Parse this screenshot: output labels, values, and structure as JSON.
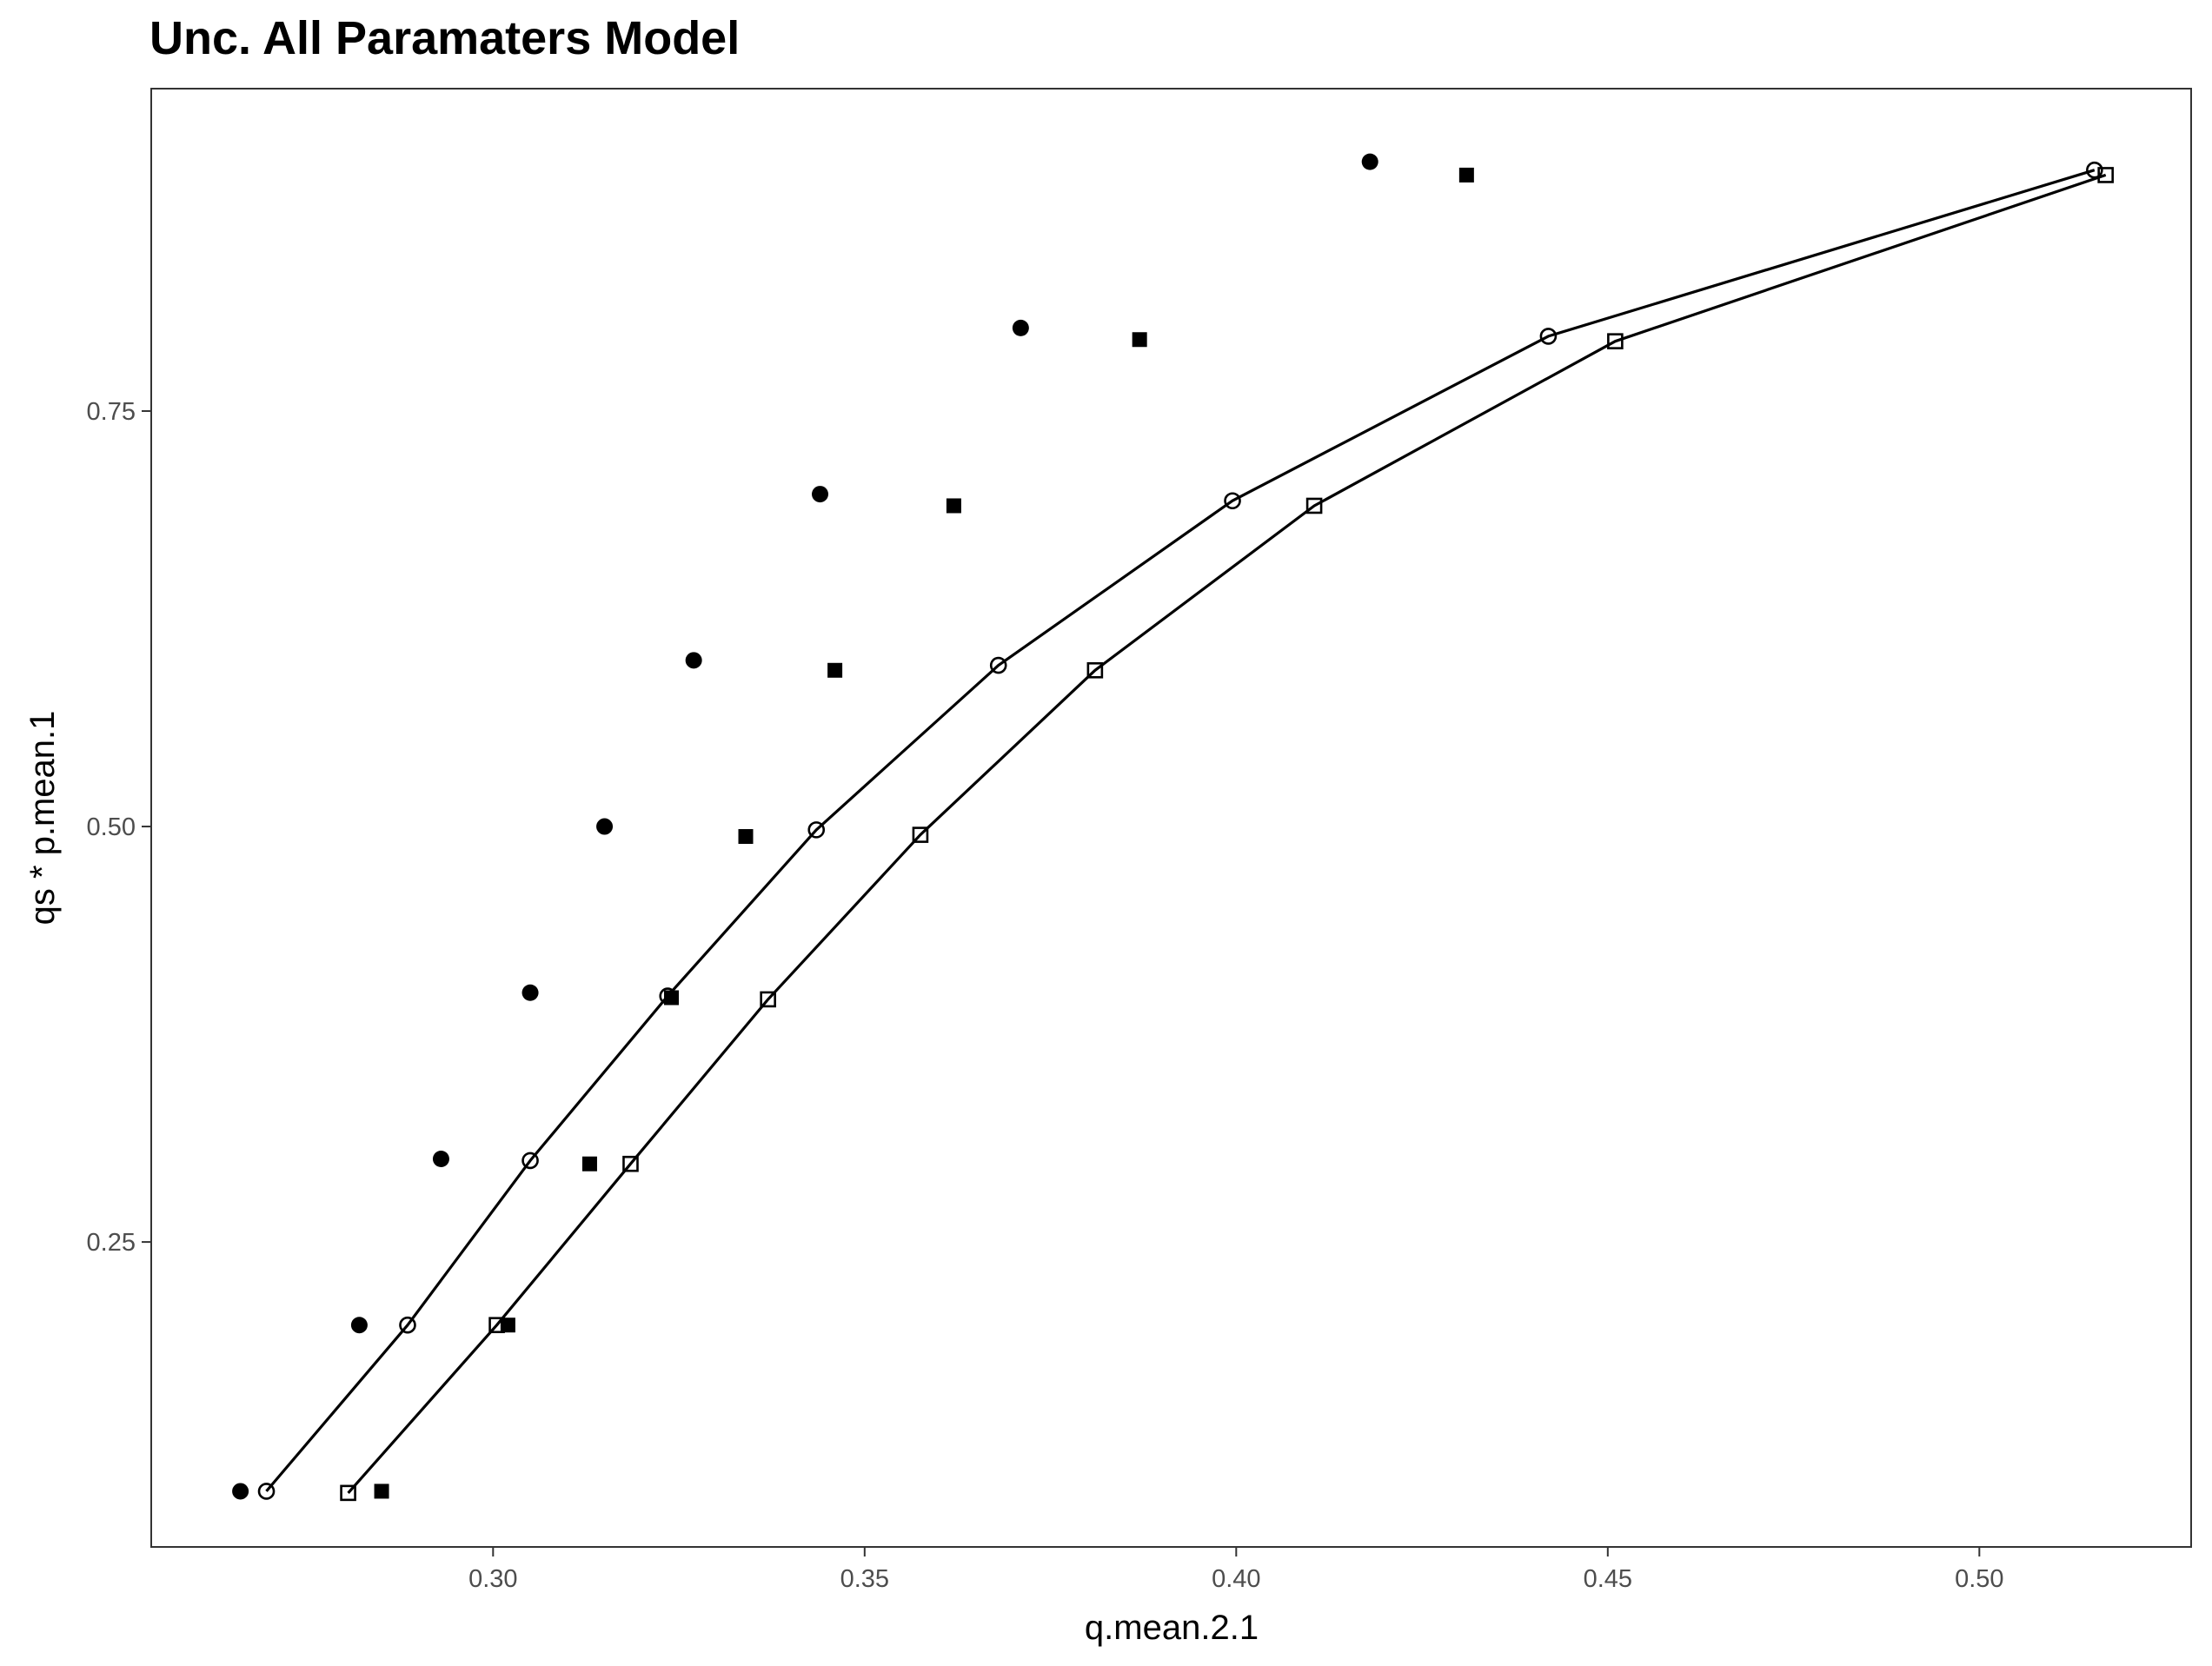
{
  "chart_data": {
    "type": "scatter",
    "title": "Unc. All Paramaters Model",
    "xlabel": "q.mean.2.1",
    "ylabel": "qs * p.mean.1",
    "xlim": [
      0.254,
      0.5285
    ],
    "ylim": [
      0.0665,
      0.944
    ],
    "x_ticks": [
      0.3,
      0.35,
      0.4,
      0.45,
      0.5
    ],
    "x_tick_labels": [
      "0.30",
      "0.35",
      "0.40",
      "0.45",
      "0.50"
    ],
    "y_ticks": [
      0.25,
      0.5,
      0.75
    ],
    "y_tick_labels": [
      "0.25",
      "0.50",
      "0.75"
    ],
    "grid": false,
    "series": [
      {
        "marker": "filled-circle",
        "line": false,
        "points": [
          {
            "x": 0.266,
            "y": 0.1
          },
          {
            "x": 0.282,
            "y": 0.2
          },
          {
            "x": 0.293,
            "y": 0.3
          },
          {
            "x": 0.305,
            "y": 0.4
          },
          {
            "x": 0.315,
            "y": 0.5
          },
          {
            "x": 0.327,
            "y": 0.6
          },
          {
            "x": 0.344,
            "y": 0.7
          },
          {
            "x": 0.371,
            "y": 0.8
          },
          {
            "x": 0.418,
            "y": 0.9
          }
        ]
      },
      {
        "marker": "filled-square",
        "line": false,
        "points": [
          {
            "x": 0.285,
            "y": 0.1
          },
          {
            "x": 0.302,
            "y": 0.2
          },
          {
            "x": 0.313,
            "y": 0.297
          },
          {
            "x": 0.324,
            "y": 0.397
          },
          {
            "x": 0.334,
            "y": 0.494
          },
          {
            "x": 0.346,
            "y": 0.594
          },
          {
            "x": 0.362,
            "y": 0.693
          },
          {
            "x": 0.387,
            "y": 0.793
          },
          {
            "x": 0.431,
            "y": 0.892
          }
        ]
      },
      {
        "marker": "open-circle",
        "line": true,
        "points": [
          {
            "x": 0.2695,
            "y": 0.1
          },
          {
            "x": 0.2885,
            "y": 0.2
          },
          {
            "x": 0.305,
            "y": 0.299
          },
          {
            "x": 0.3235,
            "y": 0.398
          },
          {
            "x": 0.3435,
            "y": 0.498
          },
          {
            "x": 0.368,
            "y": 0.597
          },
          {
            "x": 0.3995,
            "y": 0.696
          },
          {
            "x": 0.442,
            "y": 0.795
          },
          {
            "x": 0.5155,
            "y": 0.895
          }
        ]
      },
      {
        "marker": "open-square",
        "line": true,
        "points": [
          {
            "x": 0.2805,
            "y": 0.099
          },
          {
            "x": 0.3005,
            "y": 0.2
          },
          {
            "x": 0.3185,
            "y": 0.297
          },
          {
            "x": 0.337,
            "y": 0.396
          },
          {
            "x": 0.3575,
            "y": 0.495
          },
          {
            "x": 0.381,
            "y": 0.594
          },
          {
            "x": 0.4105,
            "y": 0.693
          },
          {
            "x": 0.451,
            "y": 0.792
          },
          {
            "x": 0.517,
            "y": 0.892
          }
        ]
      }
    ]
  }
}
